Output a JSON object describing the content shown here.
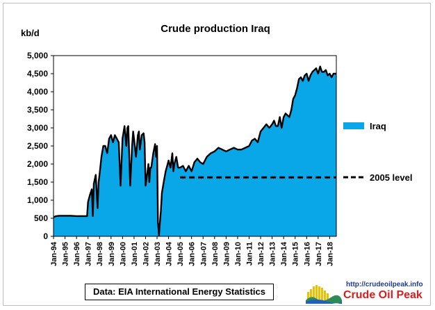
{
  "chart_data": {
    "type": "area",
    "title": "Crude  production Iraq",
    "ylabel": "kb/d",
    "xlabel": "",
    "ylim": [
      0,
      5000
    ],
    "ytick_labels": [
      "0",
      "500",
      "1,000",
      "1,500",
      "2,000",
      "2,500",
      "3,000",
      "3,500",
      "4,000",
      "4,500",
      "5,000"
    ],
    "ytick_values": [
      0,
      500,
      1000,
      1500,
      2000,
      2500,
      3000,
      3500,
      4000,
      4500,
      5000
    ],
    "x_range": [
      1994.0,
      2018.58
    ],
    "xtick_labels": [
      "Jan-94",
      "Jan-95",
      "Jan-96",
      "Jan-97",
      "Jan-98",
      "Jan-99",
      "Jan-00",
      "Jan-01",
      "Jan-02",
      "Jan-03",
      "Jan-04",
      "Jan-05",
      "Jan-06",
      "Jan-07",
      "Jan-08",
      "Jan-09",
      "Jan-10",
      "Jan-11",
      "Jan-12",
      "Jan-13",
      "Jan-14",
      "Jan-15",
      "Jan-16",
      "Jan-17",
      "Jan-18"
    ],
    "xtick_values": [
      1994,
      1995,
      1996,
      1997,
      1998,
      1999,
      2000,
      2001,
      2002,
      2003,
      2004,
      2005,
      2006,
      2007,
      2008,
      2009,
      2010,
      2011,
      2012,
      2013,
      2014,
      2015,
      2016,
      2017,
      2018
    ],
    "grid": false,
    "legend_position": "right",
    "series": [
      {
        "name": "Iraq",
        "color": "#0aa7e8",
        "x": [
          1994.0,
          1994.25,
          1994.5,
          1995.0,
          1995.5,
          1996.0,
          1996.5,
          1996.92,
          1997.0,
          1997.17,
          1997.33,
          1997.42,
          1997.5,
          1997.67,
          1997.83,
          1997.92,
          1998.0,
          1998.17,
          1998.33,
          1998.5,
          1998.67,
          1998.83,
          1999.0,
          1999.17,
          1999.33,
          1999.5,
          1999.67,
          1999.83,
          2000.0,
          2000.17,
          2000.33,
          2000.42,
          2000.5,
          2000.67,
          2000.83,
          2000.92,
          2001.0,
          2001.17,
          2001.33,
          2001.42,
          2001.5,
          2001.67,
          2001.83,
          2001.92,
          2002.0,
          2002.17,
          2002.25,
          2002.33,
          2002.42,
          2002.5,
          2002.67,
          2002.83,
          2002.92,
          2003.0,
          2003.08,
          2003.17,
          2003.25,
          2003.33,
          2003.42,
          2003.58,
          2003.75,
          2003.92,
          2004.0,
          2004.17,
          2004.33,
          2004.42,
          2004.5,
          2004.67,
          2004.83,
          2005.0,
          2005.25,
          2005.5,
          2005.75,
          2006.0,
          2006.25,
          2006.5,
          2006.75,
          2007.0,
          2007.33,
          2007.67,
          2008.0,
          2008.33,
          2008.67,
          2009.0,
          2009.33,
          2009.67,
          2010.0,
          2010.33,
          2010.67,
          2011.0,
          2011.25,
          2011.5,
          2011.75,
          2012.0,
          2012.25,
          2012.5,
          2012.75,
          2013.0,
          2013.17,
          2013.33,
          2013.5,
          2013.67,
          2013.83,
          2014.0,
          2014.17,
          2014.33,
          2014.5,
          2014.67,
          2014.83,
          2015.0,
          2015.17,
          2015.33,
          2015.5,
          2015.67,
          2015.83,
          2016.0,
          2016.17,
          2016.33,
          2016.5,
          2016.67,
          2016.83,
          2017.0,
          2017.17,
          2017.33,
          2017.5,
          2017.67,
          2017.83,
          2018.0,
          2018.17,
          2018.33,
          2018.58
        ],
        "values": [
          530,
          560,
          570,
          570,
          570,
          560,
          560,
          560,
          950,
          1150,
          1300,
          560,
          1450,
          1700,
          780,
          1500,
          1700,
          2200,
          2500,
          2500,
          2300,
          2700,
          2800,
          2600,
          2800,
          2700,
          2600,
          1400,
          2700,
          3050,
          2500,
          3000,
          3050,
          1400,
          2500,
          2900,
          2700,
          2200,
          2800,
          2900,
          2400,
          2800,
          2850,
          2600,
          1400,
          1800,
          2000,
          1500,
          1900,
          1900,
          2300,
          2550,
          2200,
          2500,
          400,
          30,
          400,
          700,
          1200,
          1500,
          1800,
          2000,
          2100,
          1900,
          2300,
          1800,
          2000,
          2200,
          1900,
          1900,
          1950,
          1800,
          1950,
          1800,
          2050,
          2150,
          2050,
          2000,
          2200,
          2300,
          2350,
          2450,
          2400,
          2350,
          2400,
          2450,
          2400,
          2400,
          2450,
          2500,
          2650,
          2700,
          2600,
          2900,
          3000,
          3100,
          3000,
          3100,
          3200,
          3050,
          3050,
          3300,
          3000,
          3300,
          3400,
          3350,
          3300,
          3500,
          3800,
          3900,
          4100,
          4350,
          4400,
          4300,
          4450,
          4500,
          4300,
          4450,
          4550,
          4600,
          4650,
          4500,
          4700,
          4550,
          4550,
          4600,
          4450,
          4500,
          4400,
          4500,
          4500
        ]
      },
      {
        "name": "2005 level",
        "style": "dashed",
        "color": "#000000",
        "x": [
          2005.0,
          2018.58
        ],
        "values": [
          1630,
          1630
        ]
      }
    ]
  },
  "footer": {
    "source_text": "Data: EIA International Energy Statistics"
  },
  "brand": {
    "url": "http://crudeoilpeak.info",
    "name": "Crude Oil Peak"
  }
}
